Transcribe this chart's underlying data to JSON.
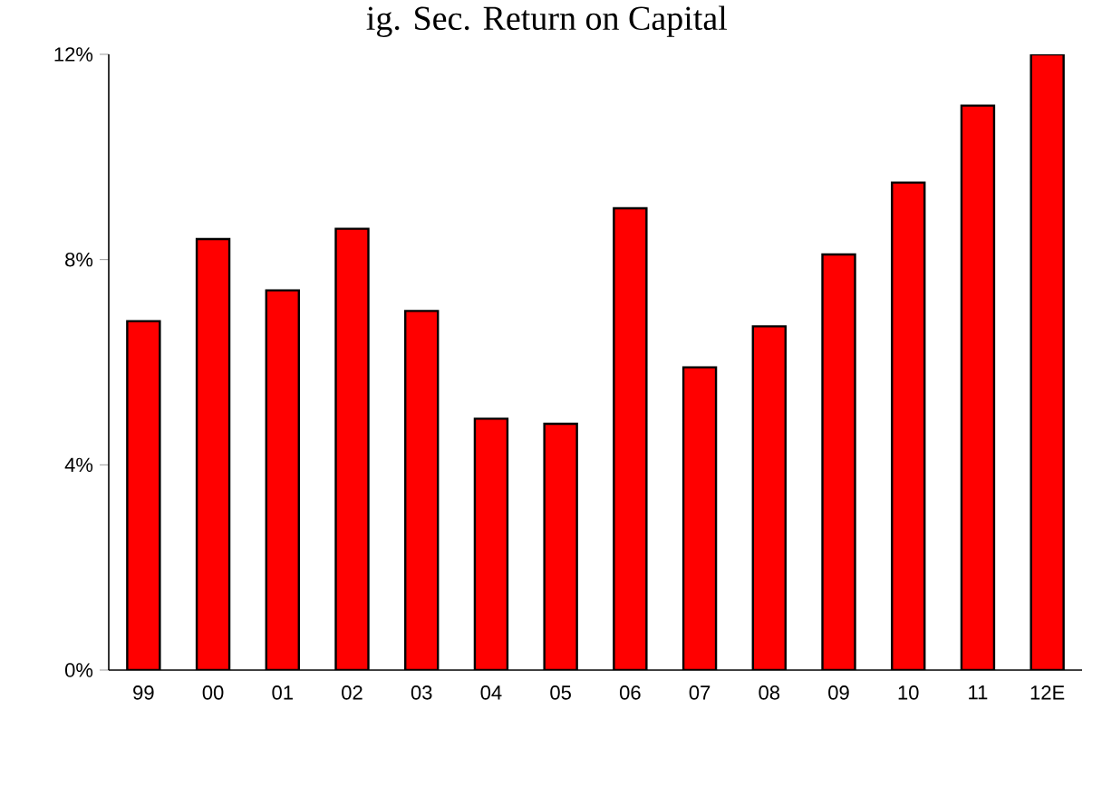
{
  "chart_data": {
    "type": "bar",
    "title": "ig. Sec. Return on Capital",
    "categories": [
      "99",
      "00",
      "01",
      "02",
      "03",
      "04",
      "05",
      "06",
      "07",
      "08",
      "09",
      "10",
      "11",
      "12E"
    ],
    "values": [
      6.8,
      8.4,
      7.4,
      8.6,
      7.0,
      4.9,
      4.8,
      9.0,
      5.9,
      6.7,
      8.1,
      9.5,
      11.0,
      12.0
    ],
    "color": "#ff0000",
    "ylim": [
      0,
      12
    ],
    "yticks": [
      {
        "value": 0,
        "label": "0%"
      },
      {
        "value": 4,
        "label": "4%"
      },
      {
        "value": 8,
        "label": "8%"
      },
      {
        "value": 12,
        "label": "12%"
      }
    ],
    "grid": false
  }
}
